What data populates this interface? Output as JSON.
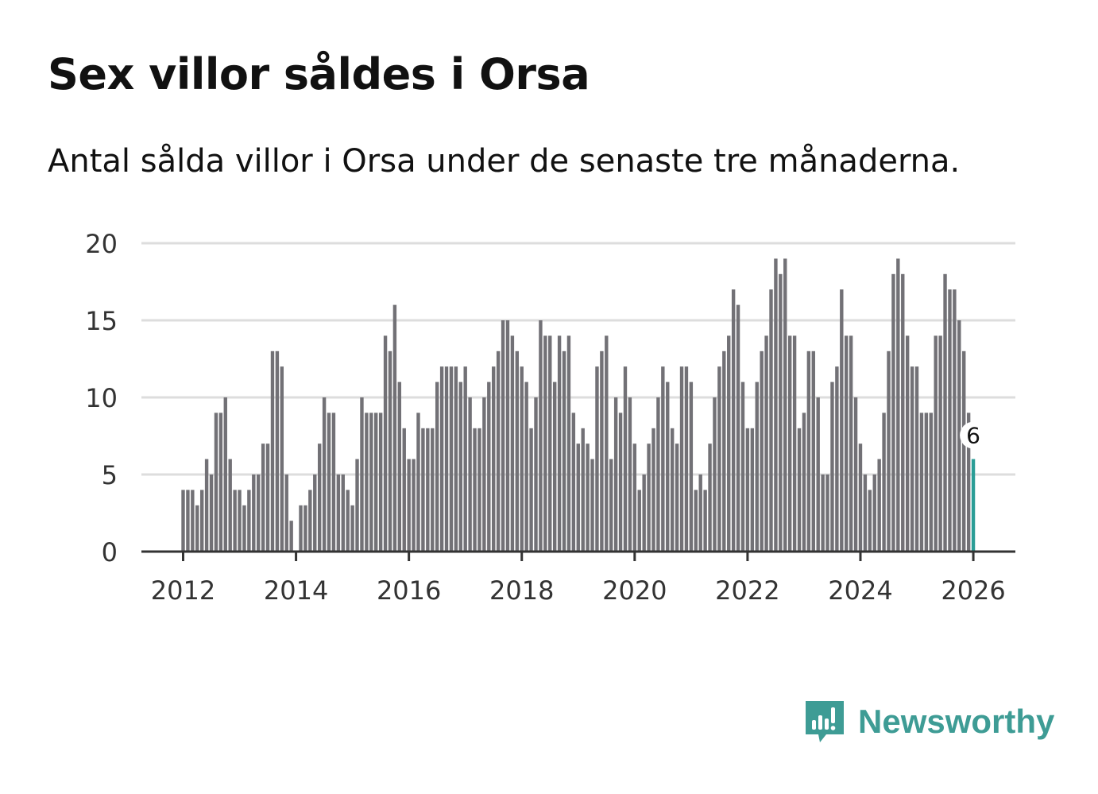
{
  "title": "Sex villor såldes i Orsa",
  "subtitle": "Antal sålda villor i Orsa under de senaste tre månaderna.",
  "brand": "Newsworthy",
  "colors": {
    "bar": "#727176",
    "highlight": "#2a9d96",
    "grid": "#dddddd",
    "axis": "#333333",
    "brand": "#3e9c95"
  },
  "chart_data": {
    "type": "bar",
    "title": "Sex villor såldes i Orsa",
    "xlabel": "",
    "ylabel": "",
    "ylim": [
      0,
      20
    ],
    "yticks": [
      0,
      5,
      10,
      15,
      20
    ],
    "xticks": [
      "2012",
      "2014",
      "2016",
      "2018",
      "2020",
      "2022",
      "2024",
      "2026"
    ],
    "start": "2012-01",
    "frequency": "monthly",
    "grid": true,
    "highlight_label": "6",
    "values": [
      4,
      4,
      4,
      3,
      4,
      6,
      5,
      9,
      9,
      10,
      6,
      4,
      4,
      3,
      4,
      5,
      5,
      7,
      7,
      13,
      13,
      12,
      5,
      2,
      0,
      3,
      3,
      4,
      5,
      7,
      10,
      9,
      9,
      5,
      5,
      4,
      3,
      6,
      10,
      9,
      9,
      9,
      9,
      14,
      13,
      16,
      11,
      8,
      6,
      6,
      9,
      8,
      8,
      8,
      11,
      12,
      12,
      12,
      12,
      11,
      12,
      10,
      8,
      8,
      10,
      11,
      12,
      13,
      15,
      15,
      14,
      13,
      12,
      11,
      8,
      10,
      15,
      14,
      14,
      11,
      14,
      13,
      14,
      9,
      7,
      8,
      7,
      6,
      12,
      13,
      14,
      6,
      10,
      9,
      12,
      10,
      7,
      4,
      5,
      7,
      8,
      10,
      12,
      11,
      8,
      7,
      12,
      12,
      11,
      4,
      5,
      4,
      7,
      10,
      12,
      13,
      14,
      17,
      16,
      11,
      8,
      8,
      11,
      13,
      14,
      17,
      19,
      18,
      19,
      14,
      14,
      8,
      9,
      13,
      13,
      10,
      5,
      5,
      11,
      12,
      17,
      14,
      14,
      10,
      7,
      5,
      4,
      5,
      6,
      9,
      13,
      18,
      19,
      18,
      14,
      12,
      12,
      9,
      9,
      9,
      14,
      14,
      18,
      17,
      17,
      15,
      13,
      9,
      6
    ]
  }
}
